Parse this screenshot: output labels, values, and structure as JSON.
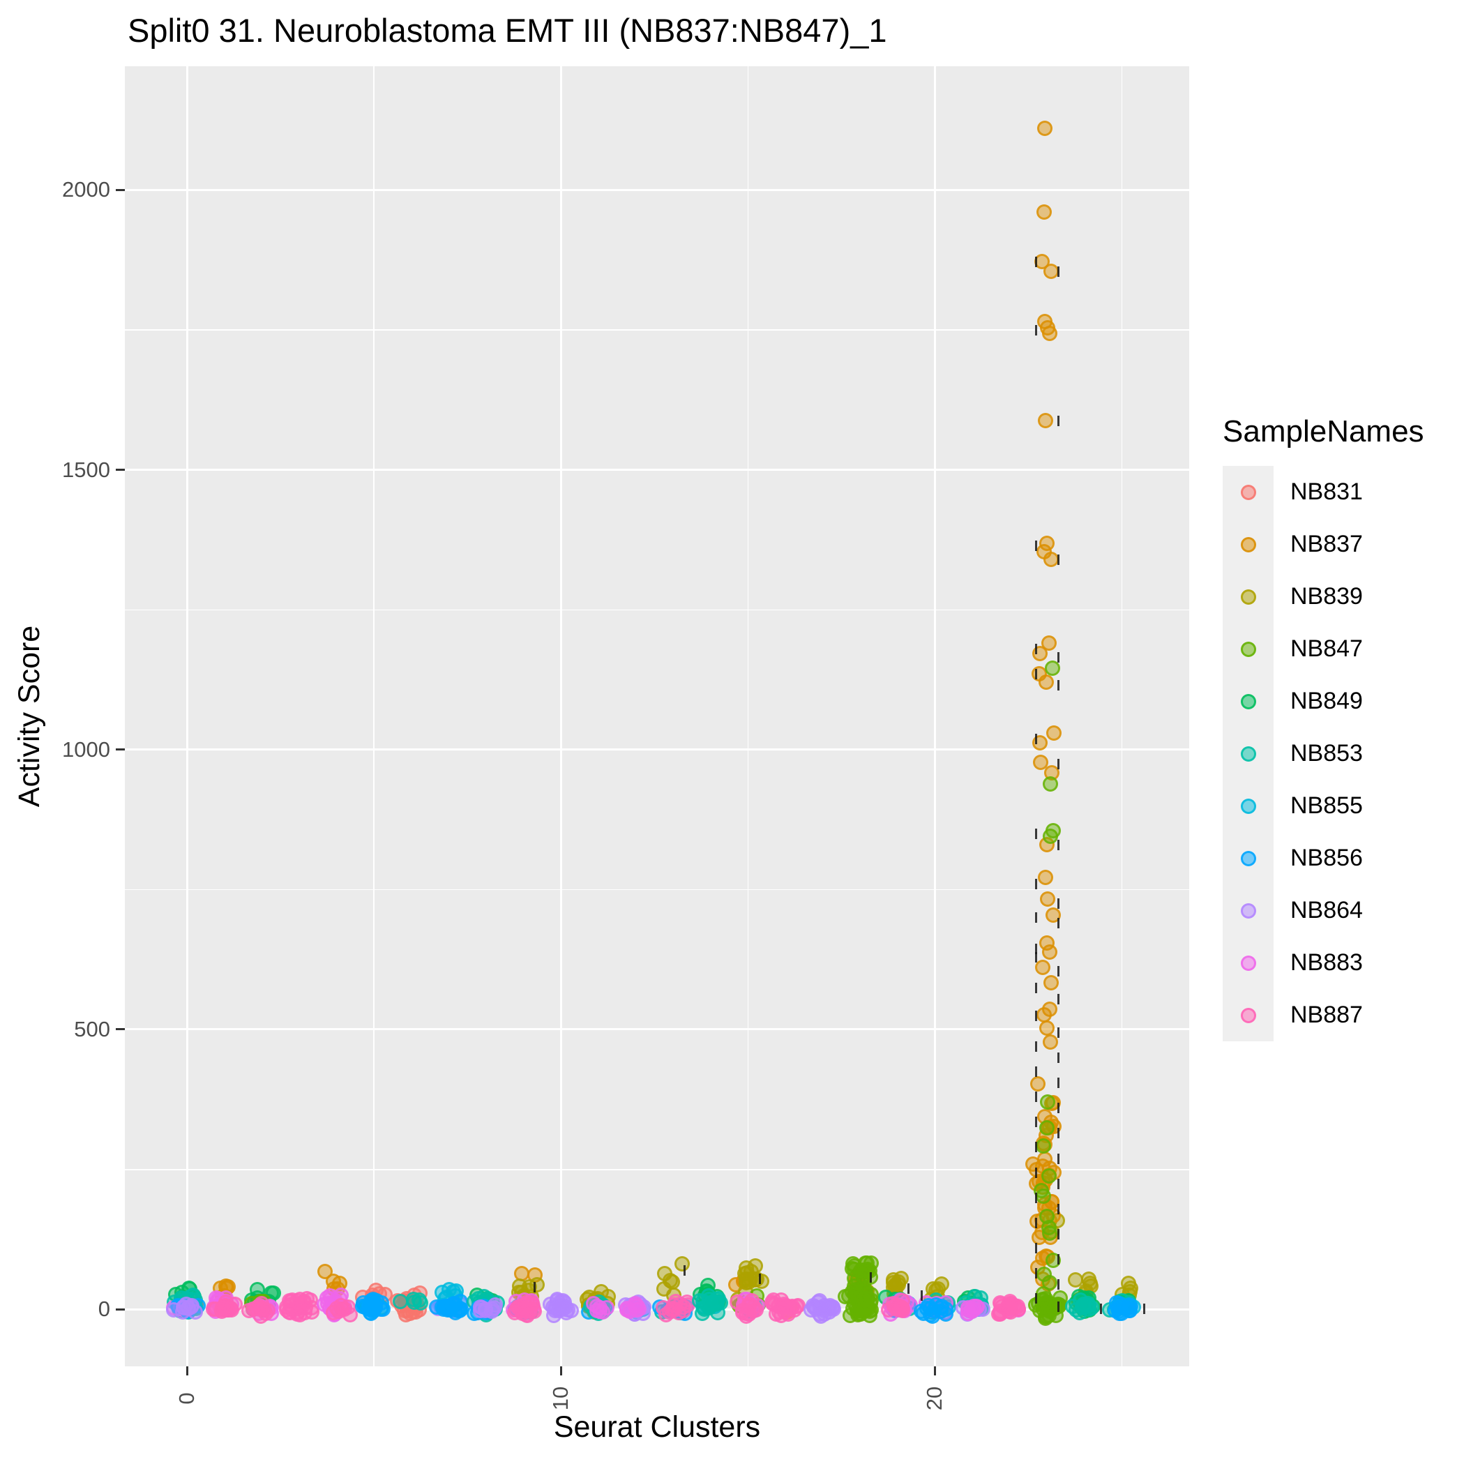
{
  "title": "Split0 31. Neuroblastoma EMT III (NB837:NB847)_1",
  "chart_data": {
    "type": "scatter",
    "subtype": "jitter-strip",
    "title": "Split0 31. Neuroblastoma EMT III (NB837:NB847)_1",
    "xlabel": "Seurat Clusters",
    "ylabel": "Activity Score",
    "xlim": [
      -1.66,
      26.8
    ],
    "ylim": [
      -102,
      2221
    ],
    "x_ticks": [
      0,
      10,
      20
    ],
    "x_minor_gridlines": [
      5,
      15,
      25
    ],
    "y_ticks": [
      0,
      500,
      1000,
      1500,
      2000
    ],
    "y_minor_gridlines": [
      250,
      750,
      1250,
      1750
    ],
    "grid": true,
    "panel_bg": "#EBEBEB",
    "gridline_color": "#FFFFFF",
    "tick_label_color": "#4D4D4D",
    "point_size": 22,
    "point_alpha": 0.45,
    "legend": {
      "title": "SampleNames",
      "position": "right",
      "entries": [
        {
          "name": "NB831",
          "color": "#F8766D"
        },
        {
          "name": "NB837",
          "color": "#DB8E00"
        },
        {
          "name": "NB839",
          "color": "#AEA200"
        },
        {
          "name": "NB847",
          "color": "#64B200"
        },
        {
          "name": "NB849",
          "color": "#00BD5C"
        },
        {
          "name": "NB853",
          "color": "#00C1A7"
        },
        {
          "name": "NB855",
          "color": "#00BADE"
        },
        {
          "name": "NB856",
          "color": "#00A6FF"
        },
        {
          "name": "NB864",
          "color": "#B385FF"
        },
        {
          "name": "NB883",
          "color": "#EF67EB"
        },
        {
          "name": "NB887",
          "color": "#FF63B6"
        }
      ]
    },
    "clusters": [
      {
        "x": 0,
        "groups": [
          {
            "sample": "NB849",
            "n": 6,
            "y": [
              5,
              48
            ]
          },
          {
            "sample": "NB837",
            "n": 4,
            "y": [
              -5,
              18
            ]
          },
          {
            "sample": "NB853",
            "n": 26,
            "y": [
              -16,
              34
            ]
          },
          {
            "sample": "NB883",
            "n": 4,
            "y": [
              -10,
              12
            ]
          },
          {
            "sample": "NB856",
            "n": 12,
            "y": [
              -14,
              14
            ]
          },
          {
            "sample": "NB864",
            "n": 10,
            "y": [
              -10,
              12
            ]
          }
        ]
      },
      {
        "x": 1,
        "groups": [
          {
            "sample": "NB837",
            "n": 6,
            "y": [
              15,
              62
            ]
          },
          {
            "sample": "NB883",
            "n": 22,
            "y": [
              -14,
              30
            ]
          },
          {
            "sample": "NB887",
            "n": 14,
            "y": [
              -14,
              16
            ]
          }
        ]
      },
      {
        "x": 2,
        "groups": [
          {
            "sample": "NB849",
            "n": 16,
            "y": [
              -12,
              40
            ]
          },
          {
            "sample": "NB847",
            "n": 4,
            "y": [
              0,
              30
            ]
          },
          {
            "sample": "NB883",
            "n": 10,
            "y": [
              -12,
              14
            ]
          },
          {
            "sample": "NB887",
            "n": 12,
            "y": [
              -14,
              14
            ]
          }
        ]
      },
      {
        "x": 3,
        "groups": [
          {
            "sample": "NB887",
            "n": 26,
            "y": [
              -14,
              22
            ]
          }
        ]
      },
      {
        "x": 4,
        "groups": [
          {
            "sample": "NB837",
            "n": 5,
            "y": [
              22,
              72
            ]
          },
          {
            "sample": "NB883",
            "n": 24,
            "y": [
              -14,
              32
            ]
          },
          {
            "sample": "NB887",
            "n": 8,
            "y": [
              -12,
              12
            ]
          }
        ]
      },
      {
        "x": 5,
        "groups": [
          {
            "sample": "NB831",
            "n": 6,
            "y": [
              8,
              38
            ]
          },
          {
            "sample": "NB853",
            "n": 6,
            "y": [
              -10,
              18
            ]
          },
          {
            "sample": "NB855",
            "n": 5,
            "y": [
              -8,
              16
            ]
          },
          {
            "sample": "NB856",
            "n": 20,
            "y": [
              -14,
              22
            ]
          }
        ]
      },
      {
        "x": 6,
        "groups": [
          {
            "sample": "NB831",
            "n": 22,
            "y": [
              -14,
              34
            ]
          },
          {
            "sample": "NB853",
            "n": 5,
            "y": [
              2,
              28
            ]
          }
        ]
      },
      {
        "x": 7,
        "groups": [
          {
            "sample": "NB864",
            "n": 5,
            "y": [
              -8,
              12
            ]
          },
          {
            "sample": "NB855",
            "n": 7,
            "y": [
              10,
              42
            ]
          },
          {
            "sample": "NB856",
            "n": 20,
            "y": [
              -14,
              20
            ]
          }
        ]
      },
      {
        "x": 8,
        "groups": [
          {
            "sample": "NB849",
            "n": 5,
            "y": [
              4,
              30
            ]
          },
          {
            "sample": "NB853",
            "n": 20,
            "y": [
              -14,
              28
            ]
          },
          {
            "sample": "NB856",
            "n": 6,
            "y": [
              -10,
              12
            ]
          },
          {
            "sample": "NB864",
            "n": 9,
            "y": [
              -10,
              12
            ]
          }
        ]
      },
      {
        "x": 9,
        "groups": [
          {
            "sample": "NB837",
            "n": 2,
            "y": [
              55,
              68
            ]
          },
          {
            "sample": "NB839",
            "n": 8,
            "y": [
              16,
              58
            ]
          },
          {
            "sample": "NB853",
            "n": 5,
            "y": [
              -8,
              18
            ]
          },
          {
            "sample": "NB856",
            "n": 5,
            "y": [
              -12,
              10
            ]
          },
          {
            "sample": "NB883",
            "n": 12,
            "y": [
              -12,
              26
            ]
          },
          {
            "sample": "NB887",
            "n": 20,
            "y": [
              -16,
              20
            ]
          }
        ]
      },
      {
        "x": 10,
        "groups": [
          {
            "sample": "NB864",
            "n": 26,
            "y": [
              -14,
              20
            ]
          }
        ]
      },
      {
        "x": 11,
        "groups": [
          {
            "sample": "NB839",
            "n": 20,
            "y": [
              -12,
              34
            ]
          },
          {
            "sample": "NB856",
            "n": 4,
            "y": [
              -8,
              10
            ]
          },
          {
            "sample": "NB853",
            "n": 7,
            "y": [
              -10,
              14
            ]
          },
          {
            "sample": "NB883",
            "n": 7,
            "y": [
              -10,
              12
            ]
          }
        ]
      },
      {
        "x": 12,
        "groups": [
          {
            "sample": "NB855",
            "n": 3,
            "y": [
              -6,
              10
            ]
          },
          {
            "sample": "NB864",
            "n": 20,
            "y": [
              -14,
              20
            ]
          },
          {
            "sample": "NB883",
            "n": 8,
            "y": [
              -10,
              14
            ]
          }
        ]
      },
      {
        "x": 13,
        "groups": [
          {
            "sample": "NB839",
            "n": 6,
            "y": [
              24,
              84
            ]
          },
          {
            "sample": "NB853",
            "n": 6,
            "y": [
              -8,
              16
            ]
          },
          {
            "sample": "NB856",
            "n": 10,
            "y": [
              -12,
              14
            ]
          },
          {
            "sample": "NB887",
            "n": 14,
            "y": [
              -14,
              16
            ]
          }
        ]
      },
      {
        "x": 14,
        "groups": [
          {
            "sample": "NB855",
            "n": 4,
            "y": [
              -6,
              14
            ]
          },
          {
            "sample": "NB849",
            "n": 10,
            "y": [
              6,
              52
            ]
          },
          {
            "sample": "NB853",
            "n": 18,
            "y": [
              -14,
              30
            ]
          }
        ]
      },
      {
        "x": 15,
        "groups": [
          {
            "sample": "NB837",
            "n": 3,
            "y": [
              30,
              60
            ]
          },
          {
            "sample": "NB839",
            "n": 14,
            "y": [
              8,
              96
            ]
          },
          {
            "sample": "NB847",
            "n": 4,
            "y": [
              0,
              28
            ]
          },
          {
            "sample": "NB855",
            "n": 4,
            "y": [
              -6,
              12
            ]
          },
          {
            "sample": "NB883",
            "n": 10,
            "y": [
              -12,
              20
            ]
          },
          {
            "sample": "NB887",
            "n": 12,
            "y": [
              -14,
              16
            ]
          }
        ]
      },
      {
        "x": 16,
        "groups": [
          {
            "sample": "NB831",
            "n": 3,
            "y": [
              -6,
              12
            ]
          },
          {
            "sample": "NB887",
            "n": 22,
            "y": [
              -14,
              20
            ]
          }
        ]
      },
      {
        "x": 17,
        "groups": [
          {
            "sample": "NB864",
            "n": 24,
            "y": [
              -14,
              18
            ]
          }
        ]
      },
      {
        "x": 18,
        "groups": [
          {
            "sample": "NB839",
            "n": 4,
            "y": [
              20,
              55
            ]
          },
          {
            "sample": "NB837",
            "n": 6,
            "y": [
              25,
              80
            ]
          },
          {
            "sample": "NB847",
            "n": 50,
            "y": [
              -18,
              42
            ]
          },
          {
            "sample": "NB847",
            "n": 22,
            "y": [
              35,
              92
            ]
          }
        ]
      },
      {
        "x": 19,
        "groups": [
          {
            "sample": "NB839",
            "n": 10,
            "y": [
              14,
              66
            ]
          },
          {
            "sample": "NB831",
            "n": 3,
            "y": [
              -6,
              10
            ]
          },
          {
            "sample": "NB849",
            "n": 4,
            "y": [
              6,
              30
            ]
          },
          {
            "sample": "NB853",
            "n": 6,
            "y": [
              -8,
              20
            ]
          },
          {
            "sample": "NB856",
            "n": 6,
            "y": [
              -10,
              14
            ]
          },
          {
            "sample": "NB883",
            "n": 10,
            "y": [
              -12,
              18
            ]
          },
          {
            "sample": "NB887",
            "n": 12,
            "y": [
              -14,
              16
            ]
          }
        ]
      },
      {
        "x": 20,
        "groups": [
          {
            "sample": "NB839",
            "n": 6,
            "y": [
              14,
              52
            ]
          },
          {
            "sample": "NB855",
            "n": 4,
            "y": [
              -6,
              14
            ]
          },
          {
            "sample": "NB853",
            "n": 7,
            "y": [
              -10,
              22
            ]
          },
          {
            "sample": "NB883",
            "n": 8,
            "y": [
              -12,
              14
            ]
          },
          {
            "sample": "NB856",
            "n": 14,
            "y": [
              -14,
              16
            ]
          }
        ]
      },
      {
        "x": 21,
        "groups": [
          {
            "sample": "NB849",
            "n": 4,
            "y": [
              2,
              26
            ]
          },
          {
            "sample": "NB853",
            "n": 14,
            "y": [
              -12,
              24
            ]
          },
          {
            "sample": "NB864",
            "n": 7,
            "y": [
              -10,
              12
            ]
          },
          {
            "sample": "NB883",
            "n": 8,
            "y": [
              -12,
              14
            ]
          }
        ]
      },
      {
        "x": 22,
        "groups": [
          {
            "sample": "NB883",
            "n": 4,
            "y": [
              -8,
              10
            ]
          },
          {
            "sample": "NB887",
            "n": 22,
            "y": [
              -14,
              18
            ]
          }
        ]
      },
      {
        "x": 23,
        "groups": [
          {
            "sample": "NB839",
            "n": 3,
            "y": [
              120,
              180
            ]
          },
          {
            "sample": "NB837",
            "n": 40,
            "y": [
              -8,
              460
            ]
          },
          {
            "sample": "NB847",
            "n": 36,
            "y": [
              -18,
              28
            ]
          }
        ],
        "outliers": [
          {
            "sample": "NB837",
            "values": [
              2110,
              1960,
              1872,
              1855,
              1765,
              1754,
              1744,
              1588,
              1368,
              1354,
              1340,
              1190,
              1172,
              1136,
              1120,
              1030,
              1012,
              977,
              959,
              830,
              771,
              733,
              704,
              654,
              638,
              611,
              584,
              536,
              526,
              503,
              478
            ]
          },
          {
            "sample": "NB847",
            "values": [
              1145,
              938,
              855,
              845,
              370,
              324,
              292,
              238,
              212,
              202,
              166,
              146,
              136,
              88,
              62,
              48
            ]
          }
        ]
      },
      {
        "x": 24,
        "groups": [
          {
            "sample": "NB839",
            "n": 6,
            "y": [
              18,
              64
            ]
          },
          {
            "sample": "NB847",
            "n": 4,
            "y": [
              0,
              24
            ]
          },
          {
            "sample": "NB849",
            "n": 12,
            "y": [
              -12,
              30
            ]
          },
          {
            "sample": "NB853",
            "n": 12,
            "y": [
              -14,
              22
            ]
          }
        ]
      },
      {
        "x": 25,
        "groups": [
          {
            "sample": "NB839",
            "n": 5,
            "y": [
              14,
              52
            ]
          },
          {
            "sample": "NB849",
            "n": 4,
            "y": [
              2,
              26
            ]
          },
          {
            "sample": "NB853",
            "n": 8,
            "y": [
              -10,
              18
            ]
          },
          {
            "sample": "NB855",
            "n": 3,
            "y": [
              -6,
              10
            ]
          },
          {
            "sample": "NB856",
            "n": 14,
            "y": [
              -14,
              14
            ]
          }
        ]
      }
    ],
    "whisker_dashes": [
      {
        "x": 23,
        "dx": -0.3,
        "values": [
          1872,
          1750,
          1365,
          1180,
          1135,
          1020,
          850,
          760,
          700,
          645,
          630,
          575,
          525,
          470,
          425,
          380,
          335,
          290,
          245,
          200,
          155,
          110,
          65,
          20
        ]
      },
      {
        "x": 23,
        "dx": 0.3,
        "values": [
          1855,
          1588,
          1340,
          1165,
          1115,
          975,
          830,
          725,
          690,
          605,
          555,
          495,
          450,
          405,
          360,
          315,
          270,
          225,
          180,
          135,
          90,
          45,
          5
        ]
      },
      {
        "x": 25,
        "dx": -0.55,
        "values": [
          2
        ]
      },
      {
        "x": 25,
        "dx": 0.6,
        "values": [
          2
        ]
      },
      {
        "x": 18,
        "dx": 0.28,
        "values": [
          58
        ]
      },
      {
        "x": 13,
        "dx": 0.3,
        "values": [
          70
        ]
      },
      {
        "x": 15,
        "dx": 0.32,
        "values": [
          55
        ]
      },
      {
        "x": 9,
        "dx": 0.3,
        "values": [
          40
        ]
      },
      {
        "x": 19,
        "dx": 0.3,
        "values": [
          38
        ]
      },
      {
        "x": 20,
        "dx": -0.35,
        "values": [
          25
        ]
      }
    ]
  }
}
